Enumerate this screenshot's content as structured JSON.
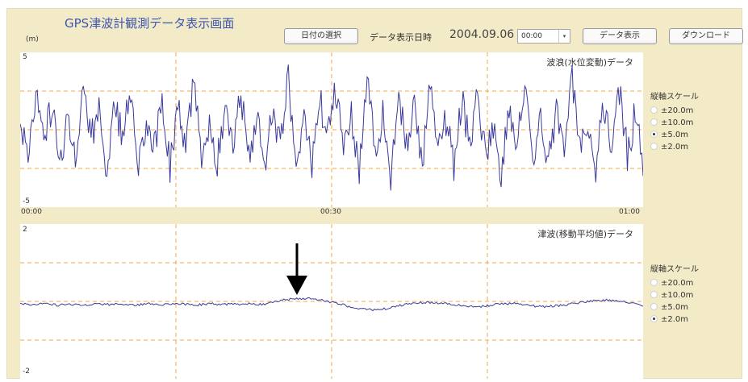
{
  "header": {
    "title": "GPS津波計観測データ表示画面",
    "unit": "(m)",
    "date_select_label": "日付の選択",
    "datetime_label": "データ表示日時",
    "datetime_value": "2004.09.06",
    "time_value": "00:00",
    "time_dropdown_arrow": "▾",
    "show_button_label": "データ表示",
    "download_button_label": "ダウンロード"
  },
  "wave_panel": {
    "title": "波浪(水位変動)データ",
    "y_max_label": "5",
    "y_min_label": "-5",
    "x_labels": [
      "00:00",
      "00:30",
      "01:00"
    ],
    "scale": {
      "title": "縦軸スケール",
      "options": [
        "±20.0m",
        "±10.0m",
        "±5.0m",
        "±2.0m"
      ],
      "selected": "±5.0m"
    }
  },
  "tsunami_panel": {
    "title": "津波(移動平均値)データ",
    "y_max_label": "2",
    "y_min_label": "-2",
    "scale": {
      "title": "縦軸スケール",
      "options": [
        "±20.0m",
        "±10.0m",
        "±5.0m",
        "±2.0m"
      ],
      "selected": "±2.0m"
    }
  },
  "colors": {
    "background": "#f3ebc7",
    "series": "#3a3a9c",
    "grid": "#f0a94a",
    "title": "#3c56b0"
  },
  "chart_data": [
    {
      "type": "line",
      "title": "波浪(水位変動)データ",
      "x_range": [
        "00:00",
        "01:00"
      ],
      "x_ticks": [
        "00:00",
        "00:30",
        "01:00"
      ],
      "ylim": [
        -5,
        5
      ],
      "y_ticks": [
        5,
        -5
      ],
      "grid": true,
      "series": [
        {
          "description": "high-frequency wave oscillation",
          "values": [
            0.4,
            -1.2,
            2.1,
            -0.8,
            1.6,
            -2.3,
            0.9,
            -1.5,
            2.6,
            -0.4,
            1.1,
            -2.9,
            1.8,
            -0.6,
            2.4,
            -1.9,
            0.7,
            -1.1,
            2.0,
            -2.5,
            1.3,
            -0.9,
            2.8,
            -1.4,
            0.5,
            -2.1,
            1.7,
            -0.7,
            2.3,
            -1.6,
            0.8,
            -2.7,
            1.5,
            -1.0,
            3.2,
            -1.8,
            0.6,
            -2.2,
            1.9,
            -0.5,
            2.5,
            -1.3,
            1.0,
            -2.6,
            3.9,
            -1.7,
            0.9,
            -3.1,
            2.2,
            -0.8,
            1.4,
            -2.0,
            2.7,
            -1.2,
            0.7,
            -2.4,
            1.8,
            -0.6,
            2.1,
            -1.5,
            0.4,
            -2.8,
            1.6,
            -1.0,
            2.9,
            -1.9,
            0.8,
            -2.3,
            1.5,
            -0.7,
            3.1,
            -1.4,
            0.6,
            -2.5,
            1.9,
            -0.9,
            2.4,
            -1.6,
            1.1,
            -2.1
          ]
        }
      ]
    },
    {
      "type": "line",
      "title": "津波(移動平均値)データ",
      "ylim": [
        -2,
        2
      ],
      "y_ticks": [
        2,
        -2
      ],
      "grid": true,
      "series": [
        {
          "description": "moving-average tsunami level",
          "values": [
            -0.05,
            -0.08,
            -0.06,
            -0.1,
            -0.07,
            -0.09,
            -0.06,
            -0.08,
            -0.07,
            -0.1,
            -0.06,
            -0.08,
            -0.05,
            -0.07,
            -0.09,
            -0.06,
            -0.08,
            -0.07,
            -0.05,
            -0.08,
            0.0,
            0.05,
            0.08,
            0.06,
            0.02,
            -0.06,
            -0.14,
            -0.2,
            -0.22,
            -0.18,
            -0.1,
            -0.05,
            -0.02,
            -0.04,
            -0.08,
            -0.12,
            -0.14,
            -0.1,
            -0.05,
            -0.06,
            -0.1,
            -0.14,
            -0.12,
            -0.08,
            -0.03,
            0.02,
            0.04,
            0.02,
            -0.04,
            -0.1
          ]
        }
      ]
    }
  ]
}
